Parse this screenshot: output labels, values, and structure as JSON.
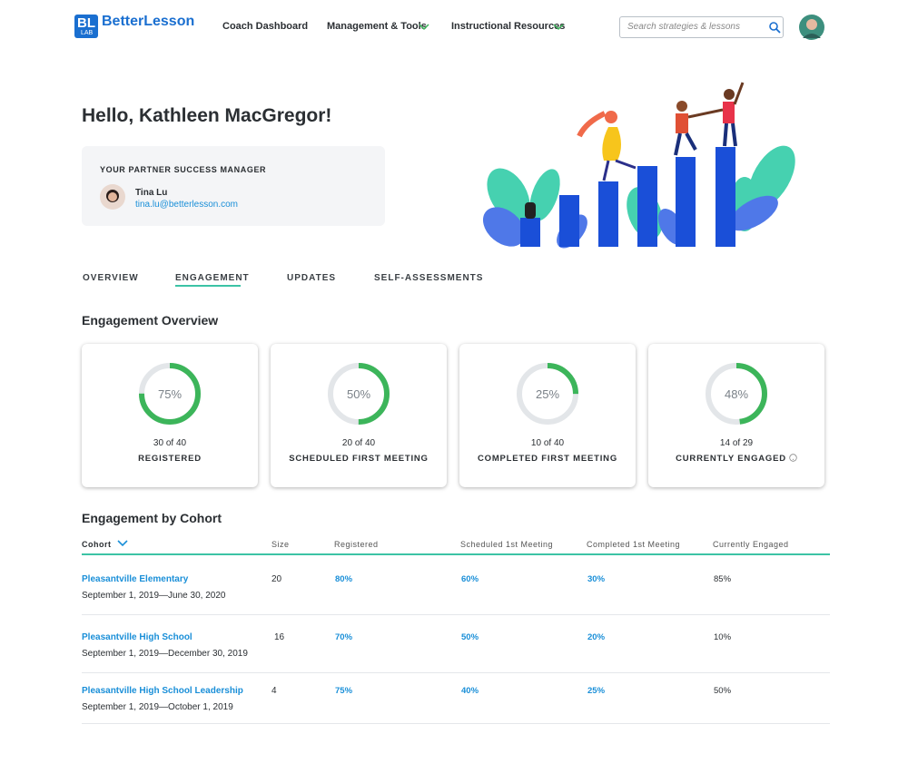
{
  "header": {
    "logo_mark": "BL",
    "logo_sub": "LAB",
    "brand": "BetterLesson",
    "nav": [
      "Coach Dashboard",
      "Management & Tools",
      "Instructional Resources"
    ],
    "search_placeholder": "Search strategies & lessons"
  },
  "greeting": "Hello, Kathleen MacGregor!",
  "manager": {
    "heading": "YOUR PARTNER SUCCESS MANAGER",
    "name": "Tina Lu",
    "email": "tina.lu@betterlesson.com"
  },
  "tabs": [
    "OVERVIEW",
    "ENGAGEMENT",
    "UPDATES",
    "SELF-ASSESSMENTS"
  ],
  "overview": {
    "title": "Engagement Overview",
    "cards": [
      {
        "percent": 75,
        "percent_label": "75%",
        "count": "30 of 40",
        "label": "REGISTERED"
      },
      {
        "percent": 50,
        "percent_label": "50%",
        "count": "20 of 40",
        "label": "SCHEDULED FIRST MEETING"
      },
      {
        "percent": 25,
        "percent_label": "25%",
        "count": "10 of 40",
        "label": "COMPLETED FIRST MEETING"
      },
      {
        "percent": 48,
        "percent_label": "48%",
        "count": "14 of 29",
        "label": "CURRENTLY ENGAGED"
      }
    ]
  },
  "cohort": {
    "title": "Engagement by Cohort",
    "columns": [
      "Cohort",
      "Size",
      "Registered",
      "Scheduled 1st Meeting",
      "Completed 1st Meeting",
      "Currently Engaged"
    ],
    "rows": [
      {
        "name": "Pleasantville Elementary",
        "dates": "September 1, 2019—June 30, 2020",
        "size": "20",
        "registered": "80%",
        "scheduled": "60%",
        "completed": "30%",
        "engaged": "85%"
      },
      {
        "name": "Pleasantville High School",
        "dates": "September 1, 2019—December 30, 2019",
        "size": "16",
        "registered": "70%",
        "scheduled": "50%",
        "completed": "20%",
        "engaged": "10%"
      },
      {
        "name": "Pleasantville High School Leadership",
        "dates": "September 1, 2019—October 1, 2019",
        "size": "4",
        "registered": "75%",
        "scheduled": "40%",
        "completed": "25%",
        "engaged": "50%"
      }
    ]
  }
}
